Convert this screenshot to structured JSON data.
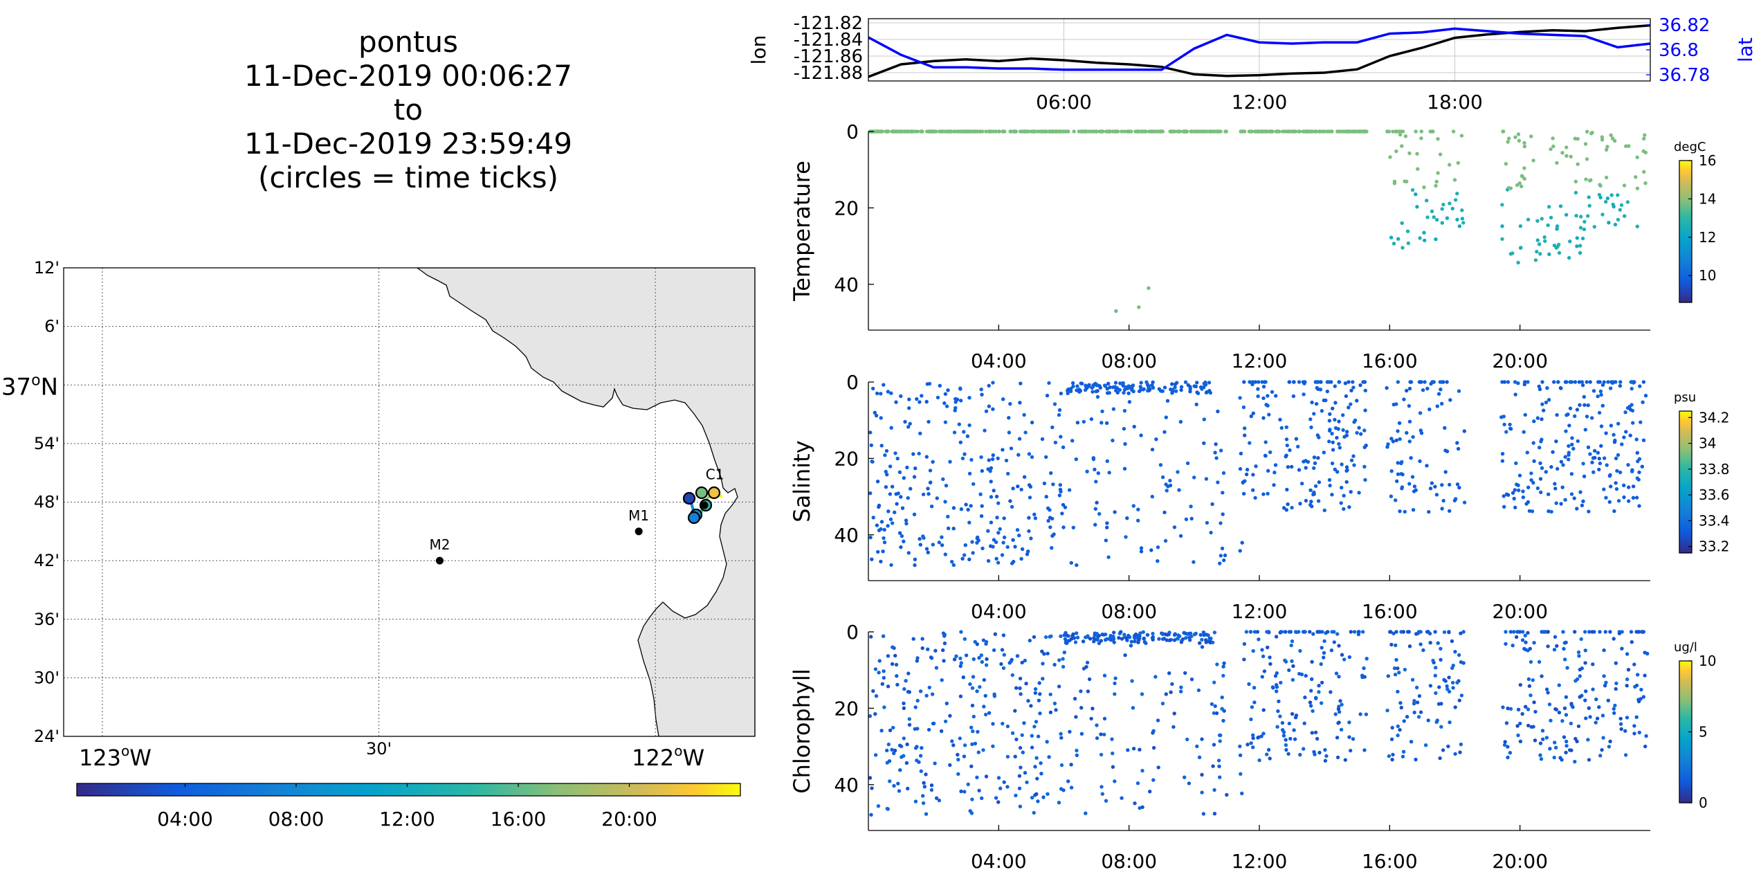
{
  "title_lines": [
    "pontus",
    "11-Dec-2019 00:06:27",
    "to",
    "11-Dec-2019 23:59:49",
    "(circles = time ticks)"
  ],
  "colors": {
    "lon_line": "#000000",
    "lat_line": "#0000ff",
    "land": "#e5e5e5",
    "grid": "#b0b0b0"
  },
  "map": {
    "lat_ticks": [
      "12'",
      "6'",
      "37°N",
      "54'",
      "48'",
      "42'",
      "36'",
      "30'",
      "24'"
    ],
    "lon_ticks": [
      "123°W",
      "30'",
      "122°W"
    ],
    "stations": [
      {
        "name": "M2",
        "lon": -122.39,
        "lat": 36.7
      },
      {
        "name": "M1",
        "lon": -122.03,
        "lat": 36.75
      },
      {
        "name": "C1",
        "lon": -121.9,
        "lat": 36.82
      }
    ],
    "colorbar_ticks": [
      "04:00",
      "08:00",
      "12:00",
      "16:00",
      "20:00"
    ],
    "colormap": "parula",
    "time_range_hours": [
      0.1,
      24.0
    ]
  },
  "chart_data": [
    {
      "type": "line",
      "name": "position",
      "xlabel": "",
      "ylabel": "lon",
      "ylabel_right": "lat",
      "x_range_hours": [
        0,
        24
      ],
      "x_ticks": [
        "06:00",
        "12:00",
        "18:00"
      ],
      "y_ticks_left": [
        "-121.82",
        "-121.84",
        "-121.86",
        "-121.88"
      ],
      "ylim_left": [
        -121.89,
        -121.815
      ],
      "y_ticks_right": [
        "36.82",
        "36.8",
        "36.78"
      ],
      "ylim_right": [
        36.775,
        36.825
      ],
      "grid": true,
      "series": [
        {
          "axis": "left",
          "x": [
            0,
            1,
            2,
            3,
            4,
            5,
            6,
            7,
            8,
            9,
            10,
            11,
            12,
            13,
            14,
            15,
            16,
            17,
            18,
            19,
            20,
            21,
            22,
            23,
            24
          ],
          "y": [
            -121.885,
            -121.87,
            -121.866,
            -121.864,
            -121.866,
            -121.863,
            -121.865,
            -121.868,
            -121.87,
            -121.873,
            -121.882,
            -121.884,
            -121.883,
            -121.881,
            -121.88,
            -121.876,
            -121.86,
            -121.85,
            -121.838,
            -121.834,
            -121.831,
            -121.829,
            -121.83,
            -121.826,
            -121.823
          ]
        },
        {
          "axis": "right",
          "x": [
            0,
            1,
            2,
            3,
            4,
            5,
            6,
            7,
            8,
            9,
            10,
            11,
            12,
            13,
            14,
            15,
            16,
            17,
            18,
            19,
            20,
            21,
            22,
            23,
            24
          ],
          "y": [
            36.81,
            36.796,
            36.786,
            36.786,
            36.785,
            36.785,
            36.784,
            36.784,
            36.784,
            36.784,
            36.801,
            36.812,
            36.806,
            36.805,
            36.806,
            36.806,
            36.813,
            36.814,
            36.817,
            36.815,
            36.813,
            36.812,
            36.811,
            36.802,
            36.805
          ]
        }
      ]
    },
    {
      "type": "scatter",
      "name": "temperature",
      "ylabel": "Temperature",
      "units": "degC",
      "x_range_hours": [
        0,
        24
      ],
      "x_ticks": [
        "04:00",
        "08:00",
        "12:00",
        "16:00",
        "20:00"
      ],
      "y_ticks": [
        "0",
        "20",
        "40"
      ],
      "ylim": [
        52,
        0
      ],
      "clim": [
        8.6,
        16
      ],
      "cbar_ticks": [
        "10",
        "12",
        "14",
        "16"
      ],
      "values_approx": "surface 0 m at ~14 degC through 16:00; profiles to 30-35 m after 16:00 with 12-14 degC; few points near 41-48 m at 07:30-08:30"
    },
    {
      "type": "scatter",
      "name": "salinity",
      "ylabel": "Salinity",
      "units": "psu",
      "x_range_hours": [
        0,
        24
      ],
      "x_ticks": [
        "04:00",
        "08:00",
        "12:00",
        "16:00",
        "20:00"
      ],
      "y_ticks": [
        "0",
        "20",
        "40"
      ],
      "ylim": [
        52,
        0
      ],
      "clim": [
        33.15,
        34.25
      ],
      "cbar_ticks": [
        "33.2",
        "33.4",
        "33.6",
        "33.8",
        "34",
        "34.2"
      ],
      "values_approx": "mostly 33.3 psu, depth 0-50 m"
    },
    {
      "type": "scatter",
      "name": "chlorophyll",
      "ylabel": "Chlorophyll",
      "units": "ug/l",
      "x_range_hours": [
        0,
        24
      ],
      "x_ticks": [
        "04:00",
        "08:00",
        "12:00",
        "16:00",
        "20:00"
      ],
      "y_ticks": [
        "0",
        "20",
        "40"
      ],
      "ylim": [
        52,
        0
      ],
      "clim": [
        0,
        10
      ],
      "cbar_ticks": [
        "0",
        "5",
        "10"
      ],
      "values_approx": "mostly 1-2 ug/l, depth 0-50 m"
    }
  ]
}
